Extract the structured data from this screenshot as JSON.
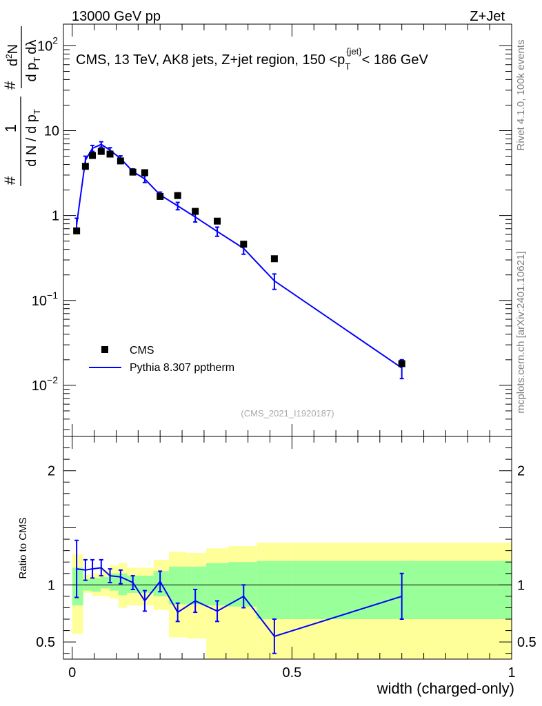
{
  "header": {
    "left": "13000 GeV pp",
    "right": "Z+Jet"
  },
  "side_labels": {
    "rivet": "Rivet 4.1.0,  100k events",
    "mcplots": "mcplots.cern.ch [arXiv:2401.10621]"
  },
  "chart_data": [
    {
      "type": "scatter+line",
      "panel": "main",
      "title_parts": {
        "prefix": "CMS, 13 TeV, AK8 jets, Z+jet region, 150 <",
        "p": "p",
        "sub": "T",
        "sup": "{jet}",
        "suffix": "< 186 GeV"
      },
      "ylabel_parts": {
        "frac_num": "1",
        "frac_den": "d N / d p",
        "frac_den_sub": "T",
        "hash": "#",
        "d2N_num": "d",
        "d2N_sup": "2",
        "d2N_N": "N",
        "d2N_den": "d p",
        "d2N_den_sub": "T",
        "d2N_den_tail": "dλ"
      },
      "yscale": "log",
      "ylim": [
        0.0025,
        180
      ],
      "xlim": [
        -0.02,
        1.0
      ],
      "ytick_labels": [
        {
          "value": 100,
          "mantissa": "10",
          "exp": "2"
        },
        {
          "value": 10,
          "mantissa": "10",
          "exp": ""
        },
        {
          "value": 1,
          "mantissa": "1",
          "exp": ""
        },
        {
          "value": 0.1,
          "mantissa": "10",
          "exp": "−1"
        },
        {
          "value": 0.01,
          "mantissa": "10",
          "exp": "−2"
        }
      ],
      "x_bins": [
        0.0,
        0.025,
        0.045,
        0.065,
        0.085,
        0.105,
        0.125,
        0.155,
        0.185,
        0.22,
        0.26,
        0.305,
        0.355,
        0.42,
        0.5,
        1.0
      ],
      "series": [
        {
          "name": "CMS",
          "marker": "square",
          "color": "#000000",
          "x": [
            0.01,
            0.03,
            0.046,
            0.066,
            0.086,
            0.11,
            0.138,
            0.165,
            0.2,
            0.24,
            0.28,
            0.33,
            0.39,
            0.46,
            0.75
          ],
          "y": [
            0.66,
            3.8,
            5.1,
            5.7,
            5.3,
            4.4,
            3.25,
            3.2,
            1.68,
            1.72,
            1.12,
            0.86,
            0.46,
            0.31,
            0.018
          ]
        },
        {
          "name": "Pythia 8.307 pptherm",
          "marker": "line",
          "color": "#0000ff",
          "x": [
            0.01,
            0.03,
            0.046,
            0.066,
            0.086,
            0.11,
            0.138,
            0.165,
            0.2,
            0.24,
            0.28,
            0.33,
            0.39,
            0.46,
            0.75
          ],
          "y": [
            0.78,
            4.5,
            6.2,
            6.9,
            5.9,
            4.7,
            3.3,
            2.7,
            1.75,
            1.3,
            0.96,
            0.65,
            0.41,
            0.17,
            0.016
          ],
          "err": [
            0.15,
            0.5,
            0.5,
            0.5,
            0.4,
            0.35,
            0.25,
            0.25,
            0.14,
            0.13,
            0.12,
            0.08,
            0.06,
            0.035,
            0.004
          ]
        }
      ],
      "legend": [
        {
          "label": "CMS",
          "marker": "square",
          "color": "#000000"
        },
        {
          "label": "Pythia 8.307 pptherm",
          "marker": "line",
          "color": "#0000ff"
        }
      ],
      "legend_position": "bottom-left",
      "analysis_label": "(CMS_2021_I1920187)"
    },
    {
      "type": "ratio",
      "panel": "ratio",
      "ylabel": "Ratio to CMS",
      "ylim": [
        0.35,
        2.3
      ],
      "xlim": [
        -0.02,
        1.0
      ],
      "xlabel": "width (charged-only)",
      "ytick_labels": [
        {
          "value": 2,
          "label": "2"
        },
        {
          "value": 1,
          "label": "1"
        },
        {
          "value": 0.5,
          "label": "0.5"
        }
      ],
      "xtick_labels": [
        {
          "value": 0,
          "label": "0"
        },
        {
          "value": 0.5,
          "label": "0.5"
        },
        {
          "value": 1,
          "label": "1"
        }
      ],
      "bands": {
        "x_bins": [
          0.0,
          0.025,
          0.045,
          0.065,
          0.085,
          0.105,
          0.125,
          0.155,
          0.185,
          0.22,
          0.26,
          0.305,
          0.355,
          0.42,
          0.5,
          1.0
        ],
        "outer_color": "#ffff99",
        "inner_color": "#99ff99",
        "outer_lo": [
          0.57,
          0.93,
          0.9,
          0.9,
          0.88,
          0.8,
          0.82,
          0.82,
          0.78,
          0.54,
          0.53,
          0.35,
          0.35,
          0.35,
          0.35
        ],
        "outer_hi": [
          1.27,
          1.09,
          1.1,
          1.13,
          1.17,
          1.19,
          1.15,
          1.15,
          1.22,
          1.29,
          1.28,
          1.32,
          1.34,
          1.37,
          1.37
        ],
        "inner_lo": [
          0.82,
          0.95,
          0.94,
          0.97,
          0.95,
          0.91,
          0.93,
          0.93,
          0.9,
          0.83,
          0.83,
          0.82,
          0.81,
          0.7,
          0.7
        ],
        "inner_hi": [
          1.15,
          1.05,
          1.06,
          1.07,
          1.1,
          1.1,
          1.08,
          1.08,
          1.12,
          1.16,
          1.16,
          1.19,
          1.2,
          1.21,
          1.21
        ]
      },
      "series": [
        {
          "name": "Pythia 8.307 pptherm / CMS",
          "color": "#0000ff",
          "x": [
            0.01,
            0.03,
            0.046,
            0.066,
            0.086,
            0.11,
            0.138,
            0.165,
            0.2,
            0.24,
            0.28,
            0.33,
            0.39,
            0.46,
            0.75
          ],
          "y": [
            1.14,
            1.13,
            1.14,
            1.15,
            1.08,
            1.07,
            1.02,
            0.86,
            1.03,
            0.76,
            0.86,
            0.77,
            0.9,
            0.55,
            0.9
          ],
          "err": [
            0.25,
            0.09,
            0.08,
            0.07,
            0.06,
            0.06,
            0.06,
            0.09,
            0.09,
            0.08,
            0.1,
            0.09,
            0.1,
            0.15,
            0.2
          ]
        }
      ]
    }
  ]
}
